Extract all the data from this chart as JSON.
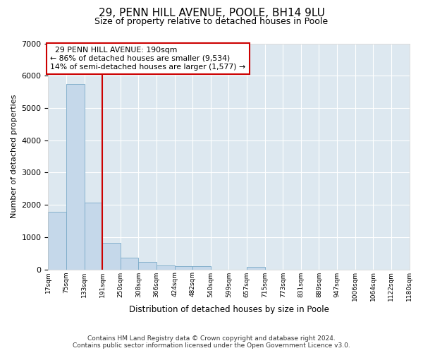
{
  "title_line1": "29, PENN HILL AVENUE, POOLE, BH14 9LU",
  "title_line2": "Size of property relative to detached houses in Poole",
  "xlabel": "Distribution of detached houses by size in Poole",
  "ylabel": "Number of detached properties",
  "footnote1": "Contains HM Land Registry data © Crown copyright and database right 2024.",
  "footnote2": "Contains public sector information licensed under the Open Government Licence v3.0.",
  "annotation_line1": "29 PENN HILL AVENUE: 190sqm",
  "annotation_line2": "← 86% of detached houses are smaller (9,534)",
  "annotation_line3": "14% of semi-detached houses are larger (1,577) →",
  "bar_color": "#c5d8ea",
  "bar_edge_color": "#7aaac8",
  "vline_color": "#cc0000",
  "ylim": [
    0,
    7000
  ],
  "yticks": [
    0,
    1000,
    2000,
    3000,
    4000,
    5000,
    6000,
    7000
  ],
  "bin_labels": [
    "17sqm",
    "75sqm",
    "133sqm",
    "191sqm",
    "250sqm",
    "308sqm",
    "366sqm",
    "424sqm",
    "482sqm",
    "540sqm",
    "599sqm",
    "657sqm",
    "715sqm",
    "773sqm",
    "831sqm",
    "889sqm",
    "947sqm",
    "1006sqm",
    "1064sqm",
    "1122sqm",
    "1180sqm"
  ],
  "bar_values": [
    1780,
    5750,
    2060,
    820,
    370,
    230,
    120,
    105,
    95,
    0,
    0,
    75,
    0,
    0,
    0,
    0,
    0,
    0,
    0,
    0
  ],
  "vline_after_bar_idx": 2,
  "plot_bg_color": "#dde8f0",
  "figsize": [
    6.0,
    5.0
  ],
  "dpi": 100
}
